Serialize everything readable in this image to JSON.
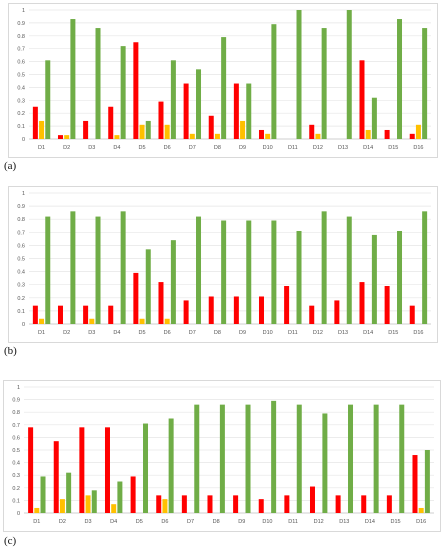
{
  "panel_labels": [
    "(a)",
    "(b)",
    "(c)"
  ],
  "colors": {
    "series1": "#ff0000",
    "series2": "#ffc000",
    "series3": "#70ad47",
    "grid": "#e6e6e6",
    "axis": "#bfbfbf",
    "tick_text": "#555555"
  },
  "chart_data": [
    {
      "type": "bar",
      "categories": [
        "D1",
        "D2",
        "D3",
        "D4",
        "D5",
        "D6",
        "D7",
        "D8",
        "D9",
        "D10",
        "D11",
        "D12",
        "D13",
        "D14",
        "D15",
        "D16"
      ],
      "ylim": [
        0,
        1
      ],
      "yticks": [
        "0",
        "0.1",
        "0.2",
        "0.3",
        "0.4",
        "0.5",
        "0.6",
        "0.7",
        "0.8",
        "0.9",
        "1"
      ],
      "grid": true,
      "series": [
        {
          "values": [
            0.25,
            0.03,
            0.14,
            0.25,
            0.75,
            0.29,
            0.43,
            0.18,
            0.43,
            0.07,
            0,
            0.11,
            0,
            0.61,
            0.07,
            0.04
          ]
        },
        {
          "values": [
            0.14,
            0.03,
            0,
            0.03,
            0.11,
            0.11,
            0.04,
            0.04,
            0.14,
            0.04,
            0,
            0.04,
            0,
            0.07,
            0,
            0.11
          ]
        },
        {
          "values": [
            0.61,
            0.93,
            0.86,
            0.72,
            0.14,
            0.61,
            0.54,
            0.79,
            0.43,
            0.89,
            1.0,
            0.86,
            1.0,
            0.32,
            0.93,
            0.86
          ]
        }
      ]
    },
    {
      "type": "bar",
      "categories": [
        "D1",
        "D2",
        "D3",
        "D4",
        "D5",
        "D6",
        "D7",
        "D8",
        "D9",
        "D10",
        "D11",
        "D12",
        "D13",
        "D14",
        "D15",
        "D16"
      ],
      "ylim": [
        0,
        1
      ],
      "yticks": [
        "0",
        "0.1",
        "0.2",
        "0.3",
        "0.4",
        "0.5",
        "0.6",
        "0.7",
        "0.8",
        "0.9",
        "1"
      ],
      "grid": true,
      "series": [
        {
          "values": [
            0.14,
            0.14,
            0.14,
            0.14,
            0.39,
            0.32,
            0.18,
            0.21,
            0.21,
            0.21,
            0.29,
            0.14,
            0.18,
            0.32,
            0.29,
            0.14
          ]
        },
        {
          "values": [
            0.04,
            0,
            0.04,
            0,
            0.04,
            0.04,
            0,
            0,
            0,
            0,
            0,
            0,
            0,
            0,
            0,
            0
          ]
        },
        {
          "values": [
            0.82,
            0.86,
            0.82,
            0.86,
            0.57,
            0.64,
            0.82,
            0.79,
            0.79,
            0.79,
            0.71,
            0.86,
            0.82,
            0.68,
            0.71,
            0.86
          ]
        }
      ]
    },
    {
      "type": "bar",
      "categories": [
        "D1",
        "D2",
        "D3",
        "D4",
        "D5",
        "D6",
        "D7",
        "D8",
        "D9",
        "D10",
        "D11",
        "D12",
        "D13",
        "D14",
        "D15",
        "D16"
      ],
      "ylim": [
        0,
        1
      ],
      "yticks": [
        "0",
        "0.1",
        "0.2",
        "0.3",
        "0.4",
        "0.5",
        "0.6",
        "0.7",
        "0.8",
        "0.9",
        "1"
      ],
      "grid": true,
      "series": [
        {
          "values": [
            0.68,
            0.57,
            0.68,
            0.68,
            0.29,
            0.14,
            0.14,
            0.14,
            0.14,
            0.11,
            0.14,
            0.21,
            0.14,
            0.14,
            0.14,
            0.46
          ]
        },
        {
          "values": [
            0.04,
            0.11,
            0.14,
            0.07,
            0,
            0.11,
            0,
            0,
            0,
            0,
            0,
            0,
            0,
            0,
            0,
            0.04
          ]
        },
        {
          "values": [
            0.29,
            0.32,
            0.18,
            0.25,
            0.71,
            0.75,
            0.86,
            0.86,
            0.86,
            0.89,
            0.86,
            0.79,
            0.86,
            0.86,
            0.86,
            0.5
          ]
        }
      ]
    }
  ]
}
